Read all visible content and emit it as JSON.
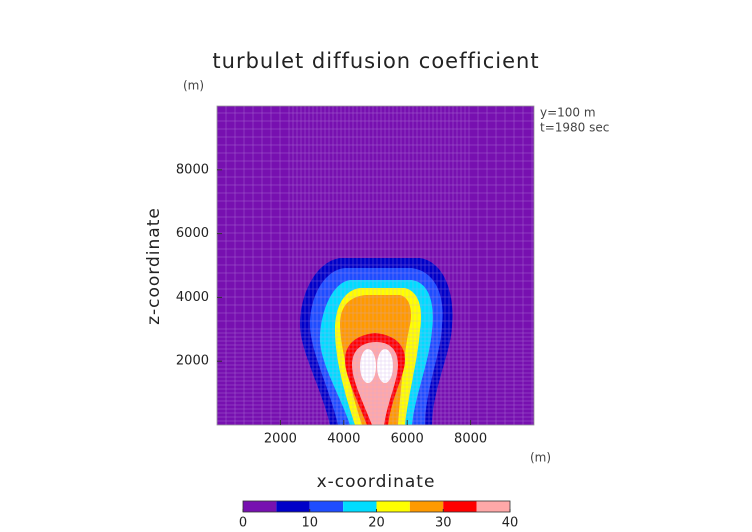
{
  "chart_data": {
    "type": "contour",
    "title": "turbulet diffusion coefficient",
    "x_label": "x-coordinate",
    "y_label": "z-coordinate",
    "x_unit": "(m)",
    "y_unit": "(m)",
    "annotations": [
      "y=100 m",
      "t=1980 sec"
    ],
    "xlim": [
      0,
      10000
    ],
    "ylim": [
      0,
      10000
    ],
    "xticks": [
      2000,
      4000,
      6000,
      8000
    ],
    "yticks": [
      2000,
      4000,
      6000,
      8000
    ],
    "levels": [
      0,
      5,
      10,
      15,
      20,
      25,
      30,
      35,
      40
    ],
    "colors": [
      "#7710b0",
      "#0000c8",
      "#1f4dff",
      "#00dcff",
      "#ffff00",
      "#ff9a00",
      "#ff0000",
      "#ffa8a8"
    ],
    "colorbar_ticks": [
      0,
      10,
      20,
      30,
      40
    ]
  }
}
